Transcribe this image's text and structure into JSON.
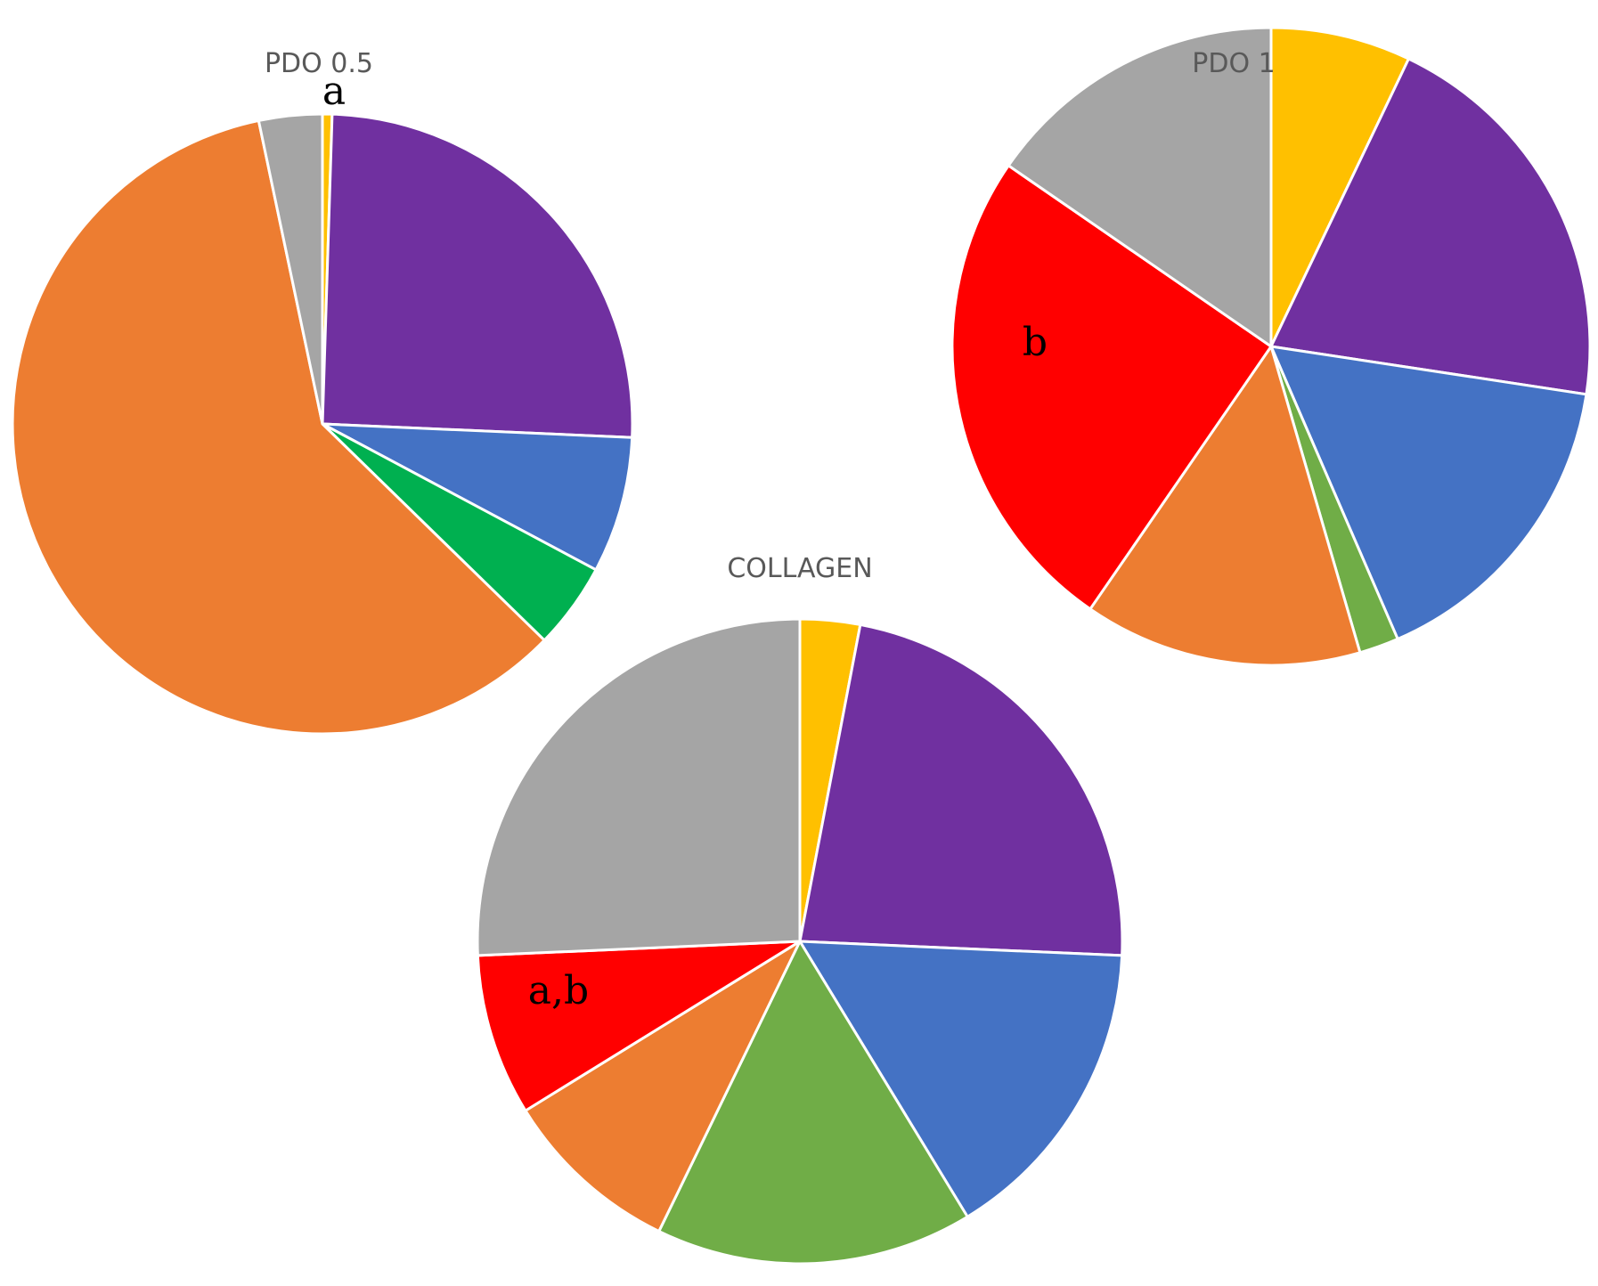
{
  "chart_data": [
    {
      "type": "pie",
      "title": "PDO 0.5",
      "annotations": [
        "a"
      ],
      "slices": [
        {
          "color": "#FFC000",
          "value": 0.5
        },
        {
          "color": "#7030A0",
          "value": 25.2
        },
        {
          "color": "#4472C4",
          "value": 7.1
        },
        {
          "color": "#00B050",
          "value": 4.5
        },
        {
          "color": "#ED7D31",
          "value": 59.4
        },
        {
          "color": "#A5A5A5",
          "value": 3.3
        }
      ]
    },
    {
      "type": "pie",
      "title": "PDO 1",
      "annotations": [
        "b"
      ],
      "slices": [
        {
          "color": "#FFC000",
          "value": 7.1
        },
        {
          "color": "#7030A0",
          "value": 20.3
        },
        {
          "color": "#4472C4",
          "value": 16.1
        },
        {
          "color": "#70AD47",
          "value": 2.0
        },
        {
          "color": "#ED7D31",
          "value": 14.1
        },
        {
          "color": "#FF0000",
          "value": 25.0
        },
        {
          "color": "#A5A5A5",
          "value": 15.4
        }
      ]
    },
    {
      "type": "pie",
      "title": "COLLAGEN",
      "annotations": [
        "a,b"
      ],
      "slices": [
        {
          "color": "#FFC000",
          "value": 3.0
        },
        {
          "color": "#7030A0",
          "value": 22.7
        },
        {
          "color": "#4472C4",
          "value": 15.6
        },
        {
          "color": "#70AD47",
          "value": 15.9
        },
        {
          "color": "#ED7D31",
          "value": 9.0
        },
        {
          "color": "#FF0000",
          "value": 8.1
        },
        {
          "color": "#A5A5A5",
          "value": 25.7
        }
      ]
    }
  ]
}
